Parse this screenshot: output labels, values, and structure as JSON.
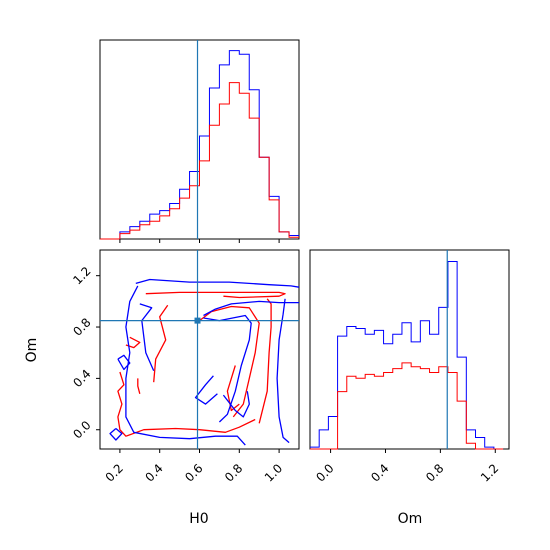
{
  "chart_data": {
    "type": "corner",
    "colors": {
      "series_a": "#0000ff",
      "series_b": "#ff0000",
      "truth": "#1f77b4"
    },
    "truth": {
      "H0": 0.59,
      "Om": 0.85
    },
    "hist_H0": {
      "xlim": [
        0.1,
        1.1
      ],
      "bin_edges": [
        0.1,
        0.15,
        0.2,
        0.25,
        0.3,
        0.35,
        0.4,
        0.45,
        0.5,
        0.55,
        0.6,
        0.65,
        0.7,
        0.75,
        0.8,
        0.85,
        0.9,
        0.95,
        1.0,
        1.05,
        1.1
      ],
      "series": [
        {
          "color": "blue",
          "values": [
            0,
            0,
            4,
            7,
            10,
            14,
            16,
            20,
            28,
            38,
            58,
            85,
            98,
            106,
            104,
            84,
            46,
            24,
            4,
            2
          ]
        },
        {
          "color": "red",
          "values": [
            0,
            0,
            3,
            5,
            8,
            10,
            13,
            17,
            23,
            30,
            44,
            64,
            76,
            88,
            82,
            68,
            46,
            22,
            4,
            1
          ]
        }
      ]
    },
    "hist_Om": {
      "xlim": [
        -0.15,
        1.3
      ],
      "xticks": [
        "0.0",
        "0.4",
        "0.8",
        "1.2"
      ],
      "bin_edges": [
        -0.15,
        -0.083,
        -0.016,
        0.051,
        0.118,
        0.185,
        0.252,
        0.319,
        0.386,
        0.453,
        0.52,
        0.587,
        0.654,
        0.721,
        0.788,
        0.855,
        0.922,
        0.989,
        1.056,
        1.123,
        1.19,
        1.257
      ],
      "series": [
        {
          "color": "blue",
          "values": [
            1,
            10,
            17,
            59,
            64,
            63,
            60,
            62,
            55,
            60,
            66,
            56,
            67,
            60,
            74,
            98,
            48,
            10,
            6,
            1,
            0
          ]
        },
        {
          "color": "red",
          "values": [
            0,
            0,
            0,
            30,
            38,
            37,
            39,
            38,
            40,
            42,
            45,
            43,
            42,
            40,
            43,
            40,
            25,
            3,
            0,
            0,
            0
          ]
        }
      ]
    },
    "scatter_2d": {
      "x": "H0",
      "y": "Om",
      "xlim": [
        0.1,
        1.1
      ],
      "ylim": [
        -0.15,
        1.4
      ],
      "xticks": [
        "0.2",
        "0.4",
        "0.6",
        "0.8",
        "1.0"
      ],
      "yticks": [
        "0.0",
        "0.4",
        "0.8",
        "1.2"
      ],
      "blue_contours": [
        [
          [
            0.28,
            1.14
          ],
          [
            0.35,
            1.17
          ],
          [
            0.55,
            1.15
          ],
          [
            0.75,
            1.15
          ],
          [
            0.95,
            1.13
          ],
          [
            1.06,
            1.12
          ],
          [
            1.1,
            1.11
          ]
        ],
        [
          [
            0.62,
            0.89
          ],
          [
            0.68,
            0.94
          ],
          [
            0.76,
            0.98
          ],
          [
            0.9,
            1.0
          ],
          [
            1.0,
            0.99
          ],
          [
            1.1,
            0.99
          ]
        ],
        [
          [
            1.03,
            1.02
          ],
          [
            1.02,
            0.9
          ],
          [
            1.0,
            0.7
          ],
          [
            0.99,
            0.4
          ],
          [
            1.0,
            0.1
          ],
          [
            1.02,
            -0.06
          ],
          [
            1.05,
            -0.1
          ]
        ],
        [
          [
            0.62,
            0.87
          ],
          [
            0.7,
            0.85
          ],
          [
            0.83,
            0.89
          ],
          [
            0.86,
            0.83
          ],
          [
            0.85,
            0.7
          ],
          [
            0.81,
            0.5
          ],
          [
            0.78,
            0.3
          ],
          [
            0.74,
            0.12
          ],
          [
            0.7,
            0.06
          ]
        ],
        [
          [
            0.72,
            0.27
          ],
          [
            0.78,
            0.15
          ],
          [
            0.82,
            0.1
          ],
          [
            0.85,
            0.2
          ],
          [
            0.84,
            0.3
          ]
        ],
        [
          [
            0.29,
            1.12
          ],
          [
            0.25,
            1.0
          ],
          [
            0.23,
            0.8
          ],
          [
            0.25,
            0.6
          ],
          [
            0.23,
            0.4
          ],
          [
            0.23,
            0.1
          ],
          [
            0.27,
            -0.02
          ],
          [
            0.4,
            -0.06
          ],
          [
            0.55,
            -0.07
          ],
          [
            0.68,
            -0.05
          ],
          [
            0.79,
            -0.05
          ],
          [
            0.83,
            -0.12
          ]
        ],
        [
          [
            0.18,
            0.01
          ],
          [
            0.21,
            -0.03
          ],
          [
            0.18,
            -0.08
          ],
          [
            0.15,
            -0.03
          ],
          [
            0.18,
            0.01
          ]
        ],
        [
          [
            0.37,
            0.46
          ],
          [
            0.33,
            0.6
          ],
          [
            0.31,
            0.85
          ],
          [
            0.36,
            0.95
          ],
          [
            0.3,
            0.98
          ]
        ],
        [
          [
            0.67,
            0.42
          ],
          [
            0.63,
            0.35
          ],
          [
            0.58,
            0.25
          ],
          [
            0.63,
            0.2
          ],
          [
            0.69,
            0.28
          ]
        ],
        [
          [
            0.19,
            0.55
          ],
          [
            0.22,
            0.47
          ],
          [
            0.25,
            0.52
          ],
          [
            0.22,
            0.58
          ],
          [
            0.19,
            0.55
          ]
        ]
      ],
      "red_contours": [
        [
          [
            0.33,
            1.06
          ],
          [
            0.5,
            1.07
          ],
          [
            0.7,
            1.07
          ],
          [
            0.9,
            1.07
          ],
          [
            1.0,
            1.07
          ],
          [
            1.03,
            1.06
          ],
          [
            1.0,
            1.04
          ],
          [
            0.8,
            1.03
          ],
          [
            0.72,
            1.04
          ]
        ],
        [
          [
            0.2,
            0.45
          ],
          [
            0.22,
            0.35
          ],
          [
            0.19,
            0.3
          ],
          [
            0.21,
            0.2
          ],
          [
            0.19,
            0.1
          ],
          [
            0.2,
            0.0
          ],
          [
            0.23,
            -0.05
          ],
          [
            0.32,
            0.0
          ],
          [
            0.48,
            0.01
          ],
          [
            0.6,
            0.0
          ],
          [
            0.73,
            -0.02
          ],
          [
            0.8,
            0.02
          ],
          [
            0.88,
            0.08
          ]
        ],
        [
          [
            0.9,
            0.05
          ],
          [
            0.94,
            0.3
          ],
          [
            0.95,
            0.6
          ],
          [
            0.96,
            0.8
          ],
          [
            0.96,
            0.98
          ],
          [
            0.94,
            1.02
          ]
        ],
        [
          [
            0.37,
            0.37
          ],
          [
            0.38,
            0.55
          ],
          [
            0.43,
            0.7
          ],
          [
            0.4,
            0.88
          ],
          [
            0.44,
            0.97
          ]
        ],
        [
          [
            0.6,
            0.85
          ],
          [
            0.66,
            0.92
          ],
          [
            0.76,
            0.96
          ],
          [
            0.85,
            0.95
          ],
          [
            0.9,
            0.83
          ],
          [
            0.88,
            0.6
          ],
          [
            0.85,
            0.4
          ],
          [
            0.82,
            0.2
          ],
          [
            0.77,
            0.1
          ]
        ],
        [
          [
            0.78,
            0.5
          ],
          [
            0.74,
            0.3
          ],
          [
            0.76,
            0.15
          ],
          [
            0.8,
            0.2
          ]
        ],
        [
          [
            0.25,
            0.72
          ],
          [
            0.3,
            0.68
          ],
          [
            0.27,
            0.64
          ],
          [
            0.23,
            0.66
          ]
        ],
        [
          [
            0.29,
            0.4
          ],
          [
            0.29,
            0.34
          ],
          [
            0.3,
            0.28
          ]
        ]
      ]
    },
    "xlabels": [
      "H0",
      "Om"
    ],
    "ylabels": [
      "Om"
    ]
  }
}
